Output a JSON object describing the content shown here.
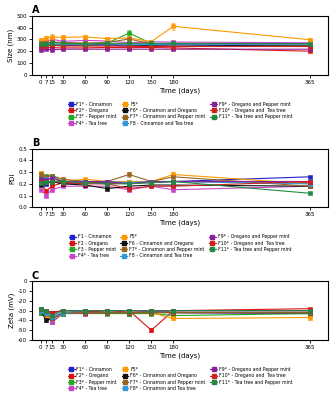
{
  "chart_data": [
    {
      "type": "line",
      "title": "A",
      "x_label": "Time (days)",
      "y_label": "Size (nm)",
      "x": [
        0,
        7,
        15,
        30,
        60,
        90,
        120,
        150,
        180,
        365
      ],
      "xlim": [
        -12,
        390
      ],
      "xticks": [
        0,
        7,
        15,
        30,
        60,
        90,
        120,
        150,
        180,
        365
      ],
      "ylim": [
        0,
        500
      ],
      "yticks": [
        0,
        100,
        200,
        300,
        400,
        500
      ],
      "marker": "square",
      "legend": "below",
      "series": [
        {
          "name": "F1* - Cinnamon",
          "color": "#2222cc",
          "values": [
            248,
            250,
            252,
            250,
            248,
            252,
            242,
            252,
            255,
            242
          ],
          "errors": [
            5,
            5,
            6,
            5,
            5,
            5,
            5,
            5,
            5,
            5
          ]
        },
        {
          "name": "F2* - Oregano",
          "color": "#dd1111",
          "values": [
            232,
            232,
            230,
            228,
            228,
            232,
            230,
            232,
            228,
            200
          ],
          "errors": [
            5,
            5,
            5,
            5,
            5,
            5,
            5,
            5,
            5,
            5
          ]
        },
        {
          "name": "F3* - Pepper mint",
          "color": "#22aa22",
          "values": [
            258,
            262,
            280,
            268,
            264,
            268,
            355,
            265,
            265,
            262
          ],
          "errors": [
            8,
            8,
            15,
            8,
            8,
            8,
            22,
            8,
            8,
            8
          ]
        },
        {
          "name": "F4* - Tea tree",
          "color": "#cc44cc",
          "values": [
            282,
            280,
            302,
            284,
            292,
            287,
            272,
            280,
            278,
            272
          ],
          "errors": [
            10,
            10,
            15,
            10,
            10,
            10,
            10,
            10,
            10,
            10
          ]
        },
        {
          "name": "F5*",
          "color": "#ff9900",
          "values": [
            298,
            312,
            322,
            318,
            322,
            308,
            312,
            282,
            412,
            298
          ],
          "errors": [
            15,
            20,
            25,
            20,
            20,
            15,
            15,
            15,
            32,
            15
          ]
        },
        {
          "name": "F6* - Cinnamon and Oregano",
          "color": "#111111",
          "values": [
            250,
            252,
            257,
            254,
            252,
            257,
            252,
            252,
            254,
            250
          ],
          "errors": [
            5,
            5,
            5,
            5,
            5,
            5,
            5,
            5,
            5,
            5
          ]
        },
        {
          "name": "F7* - Cinnamon and Pepper mint",
          "color": "#996622",
          "values": [
            272,
            270,
            278,
            274,
            270,
            274,
            304,
            262,
            262,
            252
          ],
          "errors": [
            8,
            8,
            10,
            8,
            8,
            8,
            12,
            8,
            8,
            8
          ]
        },
        {
          "name": "F8 - Cinnamon and Tea tree",
          "color": "#3399dd",
          "values": [
            252,
            254,
            260,
            257,
            252,
            254,
            254,
            257,
            260,
            257
          ],
          "errors": [
            5,
            5,
            5,
            5,
            5,
            5,
            5,
            5,
            5,
            5
          ]
        },
        {
          "name": "F9* - Oregano and Pepper mint",
          "color": "#882299",
          "values": [
            212,
            217,
            212,
            217,
            217,
            217,
            217,
            217,
            217,
            217
          ],
          "errors": [
            5,
            5,
            5,
            5,
            5,
            5,
            5,
            5,
            5,
            5
          ]
        },
        {
          "name": "F10* - Oregano and  Tea tree",
          "color": "#cc2222",
          "values": [
            242,
            244,
            250,
            244,
            244,
            244,
            242,
            240,
            240,
            240
          ],
          "errors": [
            5,
            5,
            5,
            5,
            5,
            5,
            5,
            5,
            5,
            5
          ]
        },
        {
          "name": "F11* - Tea tree and Pepper mint",
          "color": "#228844",
          "values": [
            262,
            264,
            272,
            267,
            262,
            267,
            267,
            267,
            267,
            264
          ],
          "errors": [
            8,
            8,
            8,
            8,
            8,
            8,
            8,
            8,
            8,
            8
          ]
        }
      ]
    },
    {
      "type": "line",
      "title": "B",
      "x_label": "Time (days)",
      "y_label": "PDI",
      "x": [
        0,
        7,
        15,
        30,
        60,
        90,
        120,
        150,
        180,
        365
      ],
      "xlim": [
        -12,
        390
      ],
      "xticks": [
        0,
        7,
        15,
        30,
        60,
        90,
        120,
        150,
        180,
        365
      ],
      "ylim": [
        0.0,
        0.5
      ],
      "yticks": [
        {
          "value": 0.0,
          "label": "0.0"
        },
        0.1,
        0.2,
        0.3,
        0.4,
        0.5
      ],
      "marker": "square",
      "legend": "below",
      "series": [
        {
          "name": "F1 - Cinnamon",
          "color": "#2222cc",
          "values": [
            0.21,
            0.2,
            0.22,
            0.2,
            0.21,
            0.21,
            0.21,
            0.21,
            0.22,
            0.26
          ],
          "errors": [
            0.01,
            0.01,
            0.01,
            0.01,
            0.01,
            0.01,
            0.01,
            0.01,
            0.01,
            0.01
          ]
        },
        {
          "name": "F2 - Oregano",
          "color": "#dd1111",
          "values": [
            0.22,
            0.14,
            0.18,
            0.21,
            0.22,
            0.2,
            0.21,
            0.22,
            0.22,
            0.21
          ],
          "errors": [
            0.01,
            0.01,
            0.01,
            0.01,
            0.01,
            0.01,
            0.01,
            0.01,
            0.01,
            0.01
          ]
        },
        {
          "name": "F3 - Pepper mint",
          "color": "#22aa22",
          "values": [
            0.25,
            0.27,
            0.27,
            0.22,
            0.22,
            0.22,
            0.22,
            0.22,
            0.22,
            0.22
          ],
          "errors": [
            0.01,
            0.01,
            0.01,
            0.01,
            0.01,
            0.01,
            0.01,
            0.01,
            0.01,
            0.01
          ]
        },
        {
          "name": "F4* - Tea tree",
          "color": "#cc44cc",
          "values": [
            0.15,
            0.1,
            0.15,
            0.18,
            0.18,
            0.18,
            0.15,
            0.18,
            0.15,
            0.18
          ],
          "errors": [
            0.01,
            0.01,
            0.01,
            0.01,
            0.01,
            0.01,
            0.01,
            0.01,
            0.01,
            0.01
          ]
        },
        {
          "name": "F5*",
          "color": "#ff9900",
          "values": [
            0.29,
            0.25,
            0.24,
            0.22,
            0.24,
            0.22,
            0.22,
            0.22,
            0.28,
            0.2
          ],
          "errors": [
            0.02,
            0.02,
            0.02,
            0.01,
            0.01,
            0.01,
            0.01,
            0.01,
            0.02,
            0.01
          ]
        },
        {
          "name": "F6 - Cinnamon and Oregano",
          "color": "#111111",
          "values": [
            0.19,
            0.22,
            0.22,
            0.2,
            0.19,
            0.16,
            0.18,
            0.19,
            0.19,
            0.18
          ],
          "errors": [
            0.01,
            0.01,
            0.01,
            0.01,
            0.01,
            0.01,
            0.01,
            0.01,
            0.01,
            0.01
          ]
        },
        {
          "name": "F7* - Cinnamon and Pepper mint",
          "color": "#996622",
          "values": [
            0.28,
            0.26,
            0.27,
            0.24,
            0.22,
            0.22,
            0.28,
            0.22,
            0.26,
            0.18
          ],
          "errors": [
            0.02,
            0.01,
            0.01,
            0.01,
            0.01,
            0.01,
            0.02,
            0.01,
            0.01,
            0.01
          ]
        },
        {
          "name": "F8 - Cinnamon and Tea tree",
          "color": "#3399dd",
          "values": [
            0.23,
            0.24,
            0.25,
            0.22,
            0.22,
            0.22,
            0.21,
            0.22,
            0.22,
            0.2
          ],
          "errors": [
            0.01,
            0.01,
            0.01,
            0.01,
            0.01,
            0.01,
            0.01,
            0.01,
            0.01,
            0.01
          ]
        },
        {
          "name": "F9* - Oregano and Pepper mint",
          "color": "#882299",
          "values": [
            0.24,
            0.23,
            0.25,
            0.22,
            0.22,
            0.22,
            0.2,
            0.22,
            0.22,
            0.22
          ],
          "errors": [
            0.01,
            0.01,
            0.01,
            0.01,
            0.01,
            0.01,
            0.01,
            0.01,
            0.01,
            0.01
          ]
        },
        {
          "name": "F10* - Oregano and  Tea tree",
          "color": "#cc2222",
          "values": [
            0.22,
            0.22,
            0.22,
            0.21,
            0.2,
            0.2,
            0.16,
            0.18,
            0.18,
            0.22
          ],
          "errors": [
            0.01,
            0.01,
            0.01,
            0.01,
            0.01,
            0.01,
            0.01,
            0.01,
            0.01,
            0.01
          ]
        },
        {
          "name": "F11* - Tea tree and Pepper mint",
          "color": "#228844",
          "values": [
            0.21,
            0.22,
            0.22,
            0.22,
            0.21,
            0.2,
            0.2,
            0.21,
            0.22,
            0.12
          ],
          "errors": [
            0.01,
            0.01,
            0.01,
            0.01,
            0.01,
            0.01,
            0.01,
            0.01,
            0.01,
            0.01
          ]
        }
      ]
    },
    {
      "type": "line",
      "title": "C",
      "x_label": "Time (days)",
      "y_label": "Zeta (mV)",
      "x": [
        0,
        7,
        15,
        30,
        60,
        90,
        120,
        150,
        180,
        365
      ],
      "xlim": [
        -12,
        390
      ],
      "xticks": [
        0,
        7,
        15,
        30,
        60,
        90,
        120,
        150,
        180,
        365
      ],
      "ylim": [
        -60,
        0
      ],
      "yticks": [
        -60,
        -50,
        -40,
        -30,
        -20,
        -10,
        0
      ],
      "marker": "square",
      "legend": "below",
      "series": [
        {
          "name": "F1* - Cinnamon",
          "color": "#2222cc",
          "values": [
            -32,
            -33,
            -38,
            -33,
            -30,
            -32,
            -33,
            -30,
            -32,
            -33
          ],
          "errors": [
            1,
            1,
            2,
            1,
            1,
            1,
            1,
            1,
            1,
            1
          ]
        },
        {
          "name": "F2* - Oregano",
          "color": "#dd1111",
          "values": [
            -30,
            -30,
            -32,
            -30,
            -30,
            -32,
            -30,
            -50,
            -30,
            -28
          ],
          "errors": [
            1,
            1,
            2,
            1,
            1,
            1,
            1,
            2,
            1,
            1
          ]
        },
        {
          "name": "F3* - Pepper mint",
          "color": "#22aa22",
          "values": [
            -32,
            -34,
            -42,
            -33,
            -33,
            -33,
            -33,
            -33,
            -35,
            -33
          ],
          "errors": [
            1,
            1,
            2,
            1,
            1,
            1,
            1,
            1,
            1,
            1
          ]
        },
        {
          "name": "F4* - Tea tree",
          "color": "#cc44cc",
          "values": [
            -30,
            -34,
            -42,
            -32,
            -33,
            -32,
            -32,
            -30,
            -32,
            -32
          ],
          "errors": [
            1,
            2,
            2,
            1,
            1,
            1,
            1,
            1,
            1,
            1
          ]
        },
        {
          "name": "F5*",
          "color": "#ff9900",
          "values": [
            -30,
            -35,
            -38,
            -32,
            -32,
            -32,
            -32,
            -32,
            -38,
            -37
          ],
          "errors": [
            1,
            2,
            2,
            1,
            1,
            1,
            1,
            1,
            2,
            1
          ]
        },
        {
          "name": "F6* - Cinnamon and Oregano",
          "color": "#111111",
          "values": [
            -30,
            -40,
            -38,
            -32,
            -32,
            -32,
            -32,
            -32,
            -32,
            -32
          ],
          "errors": [
            1,
            2,
            2,
            1,
            1,
            1,
            1,
            1,
            1,
            1
          ]
        },
        {
          "name": "F7* - Cinnamon and Pepper mint",
          "color": "#996622",
          "values": [
            -30,
            -33,
            -38,
            -32,
            -32,
            -32,
            -32,
            -32,
            -32,
            -32
          ],
          "errors": [
            1,
            1,
            2,
            1,
            1,
            1,
            1,
            1,
            1,
            1
          ]
        },
        {
          "name": "F8* - Cinnamon and Tea tree",
          "color": "#3399dd",
          "values": [
            -30,
            -32,
            -36,
            -32,
            -30,
            -30,
            -30,
            -30,
            -30,
            -30
          ],
          "errors": [
            1,
            1,
            2,
            1,
            1,
            1,
            1,
            1,
            1,
            1
          ]
        },
        {
          "name": "F9* - Oregano and Pepper mint",
          "color": "#882299",
          "values": [
            -28,
            -30,
            -32,
            -30,
            -30,
            -30,
            -30,
            -30,
            -30,
            -30
          ],
          "errors": [
            1,
            1,
            1,
            1,
            1,
            1,
            1,
            1,
            1,
            1
          ]
        },
        {
          "name": "F10* - Oregano and  Tea tree",
          "color": "#cc2222",
          "values": [
            -28,
            -30,
            -32,
            -30,
            -30,
            -30,
            -30,
            -30,
            -30,
            -30
          ],
          "errors": [
            1,
            1,
            1,
            1,
            1,
            1,
            1,
            1,
            1,
            1
          ]
        },
        {
          "name": "F11* - Tea tree and Pepper mint",
          "color": "#228844",
          "values": [
            -28,
            -30,
            -35,
            -30,
            -30,
            -30,
            -30,
            -30,
            -30,
            -30
          ],
          "errors": [
            1,
            1,
            2,
            1,
            1,
            1,
            1,
            1,
            1,
            1
          ]
        }
      ]
    }
  ]
}
